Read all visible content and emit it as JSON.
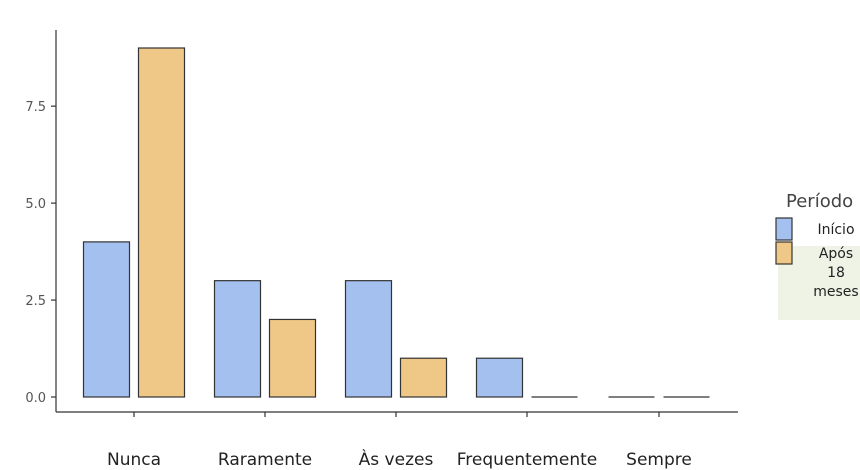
{
  "chart_data": {
    "type": "bar",
    "categories": [
      "Nunca",
      "Raramente",
      "Às vezes",
      "Frequentemente",
      "Sempre"
    ],
    "series": [
      {
        "name": "Início",
        "values": [
          4,
          3,
          3,
          1,
          0
        ],
        "color": "#a4c0ef"
      },
      {
        "name": "Após 18 meses",
        "values": [
          9,
          2,
          1,
          0,
          0
        ],
        "color": "#efc888"
      }
    ],
    "ylim": [
      0,
      9.3
    ],
    "yticks": [
      0.0,
      2.5,
      5.0,
      7.5
    ],
    "ytick_labels": [
      "0.0",
      "2.5",
      "5.0",
      "7.5"
    ],
    "grid": false,
    "legend": {
      "title": "Período",
      "placement": "right",
      "entries": [
        "Início",
        "Após 18 meses"
      ],
      "entry_lines": [
        [
          "Início"
        ],
        [
          "Após",
          "18",
          "meses"
        ]
      ]
    }
  }
}
